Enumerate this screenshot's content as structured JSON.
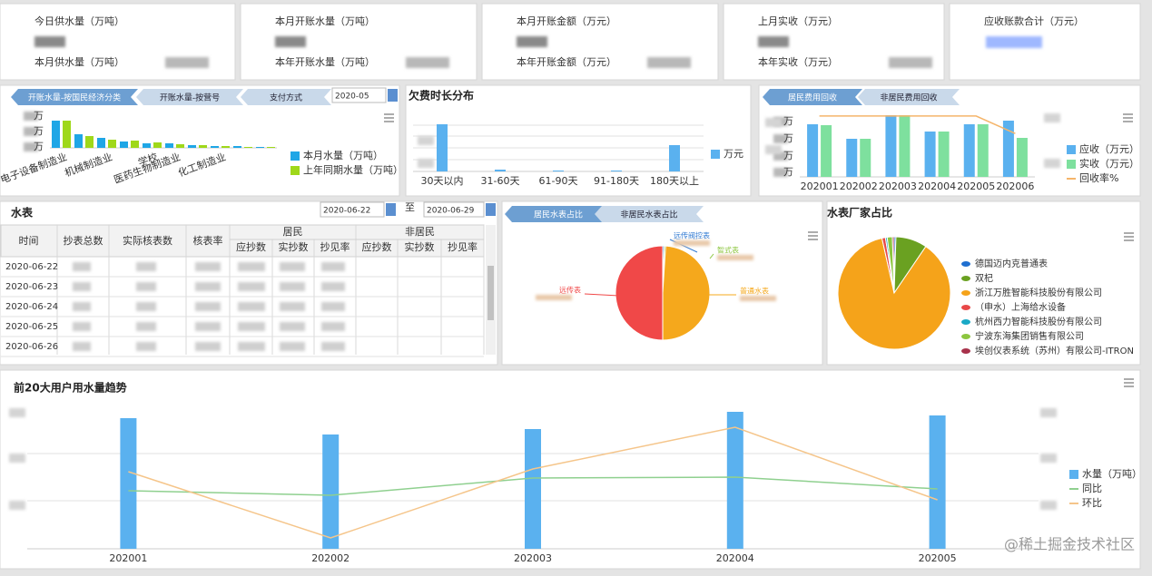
{
  "kpis": [
    {
      "label": "今日供水量（万吨）",
      "sub_label": "本月供水量（万吨）"
    },
    {
      "label": "本月开账水量（万吨）",
      "sub_label": "本年开账水量（万吨）"
    },
    {
      "label": "本月开账金额（万元）",
      "sub_label": "本年开账金额（万元）"
    },
    {
      "label": "上月实收（万元）",
      "sub_label": "本年实收（万元）"
    },
    {
      "label": "应收账款合计（万元）"
    }
  ],
  "table": {
    "title": "水表",
    "date_from": "2020-06-22",
    "date_sep": "至",
    "date_to": "2020-06-29",
    "headers": [
      "时间",
      "抄表总数",
      "实际核表数",
      "核表率"
    ],
    "groups": [
      {
        "name": "居民",
        "columns": [
          "应抄数",
          "实抄数",
          "抄见率"
        ]
      },
      {
        "name": "非居民",
        "columns": [
          "应抄数",
          "实抄数",
          "抄见率"
        ]
      }
    ],
    "rows": [
      "2020-06-22",
      "2020-06-23",
      "2020-06-24",
      "2020-06-25",
      "2020-06-26"
    ]
  },
  "chart_data": [
    {
      "type": "bar",
      "tabs": [
        "开账水量-按国民经济分类",
        "开账水量-按营号",
        "支付方式"
      ],
      "date": "2020-05",
      "y_unit": "万",
      "categories": [
        "电子设备制造业",
        null,
        "机械制造业",
        null,
        "学校",
        "医药生物制造业",
        null,
        "化工制造业",
        null,
        null
      ],
      "series": [
        {
          "name": "本月水量（万吨）",
          "color": "#1fa6e6",
          "values": [
            30,
            15,
            11,
            7,
            5,
            5,
            3,
            2,
            2,
            1
          ]
        },
        {
          "name": "上年同期水量（万吨）",
          "color": "#9fd81a",
          "values": [
            30,
            13,
            9,
            8,
            6,
            4,
            3,
            2,
            1,
            1
          ]
        }
      ],
      "ylim": [
        0,
        38
      ]
    },
    {
      "type": "bar",
      "title": "欠费时长分布",
      "categories": [
        "30天以内",
        "31-60天",
        "61-90天",
        "91-180天",
        "180天以上"
      ],
      "series": [
        {
          "name": "万元",
          "color": "#5ab1ef",
          "values": [
            52,
            2,
            1,
            1,
            29
          ]
        }
      ],
      "ylim": [
        0,
        59
      ]
    },
    {
      "type": "combo",
      "tabs": [
        "居民费用回收",
        "非居民费用回收"
      ],
      "y_unit": "万",
      "categories": [
        "202001",
        "202002",
        "202003",
        "202004",
        "202005",
        "202006"
      ],
      "series": [
        {
          "name": "应收（万元）",
          "type": "bar",
          "color": "#5ab1ef",
          "values": [
            58,
            42,
            68,
            50,
            58,
            62
          ]
        },
        {
          "name": "实收（万元）",
          "type": "bar",
          "color": "#7ee09e",
          "values": [
            57,
            42,
            68,
            50,
            58,
            43
          ]
        },
        {
          "name": "回收率%",
          "type": "line",
          "axis": "y2",
          "color": "#f5b56a",
          "values": [
            115,
            115,
            115,
            115,
            115,
            82
          ]
        }
      ],
      "ylim": [
        0,
        70
      ],
      "y2lim": [
        0,
        120
      ]
    },
    {
      "type": "pie",
      "tabs": [
        "居民水表占比",
        "非居民水表占比"
      ],
      "categories": [
        "远传阀控表",
        "智式表",
        "普通水表",
        "远传表"
      ],
      "values": [
        0.5,
        0.5,
        49,
        50
      ],
      "colors": [
        "#2e78d2",
        "#8cc63f",
        "#f5a81c",
        "#f04848"
      ]
    },
    {
      "type": "pie",
      "title": "水表厂家占比",
      "categories": [
        "德国迈内克普通表",
        "双杞",
        "浙江万胜智能科技股份有限公司",
        "（申水）上海给水设备",
        "杭州西力智能科技股份有限公司",
        "宁波东海集团销售有限公司",
        "埃创仪表系统（苏州）有限公司-ITRON"
      ],
      "values": [
        0.5,
        9,
        87,
        1,
        0.5,
        1.5,
        0.5
      ],
      "colors": [
        "#1f6fd0",
        "#6aa121",
        "#f5a31a",
        "#e84848",
        "#1aa9c6",
        "#8cc63f",
        "#a8324b"
      ]
    },
    {
      "type": "combo",
      "title": "前20大用户用水量趋势",
      "categories": [
        "202001",
        "202002",
        "202003",
        "202004",
        "202005"
      ],
      "series": [
        {
          "name": "水量（万吨）",
          "type": "bar",
          "color": "#5ab1ef",
          "values": [
            144,
            126,
            132,
            151,
            147
          ]
        },
        {
          "name": "同比",
          "type": "line",
          "color": "#8fd08f",
          "values": [
            64,
            59,
            78,
            79,
            66
          ]
        },
        {
          "name": "环比",
          "type": "line",
          "color": "#f5c58a",
          "values": [
            85,
            12,
            88,
            134,
            54
          ]
        }
      ],
      "ylim": [
        0,
        160
      ]
    }
  ],
  "watermark": "@稀土掘金技术社区"
}
